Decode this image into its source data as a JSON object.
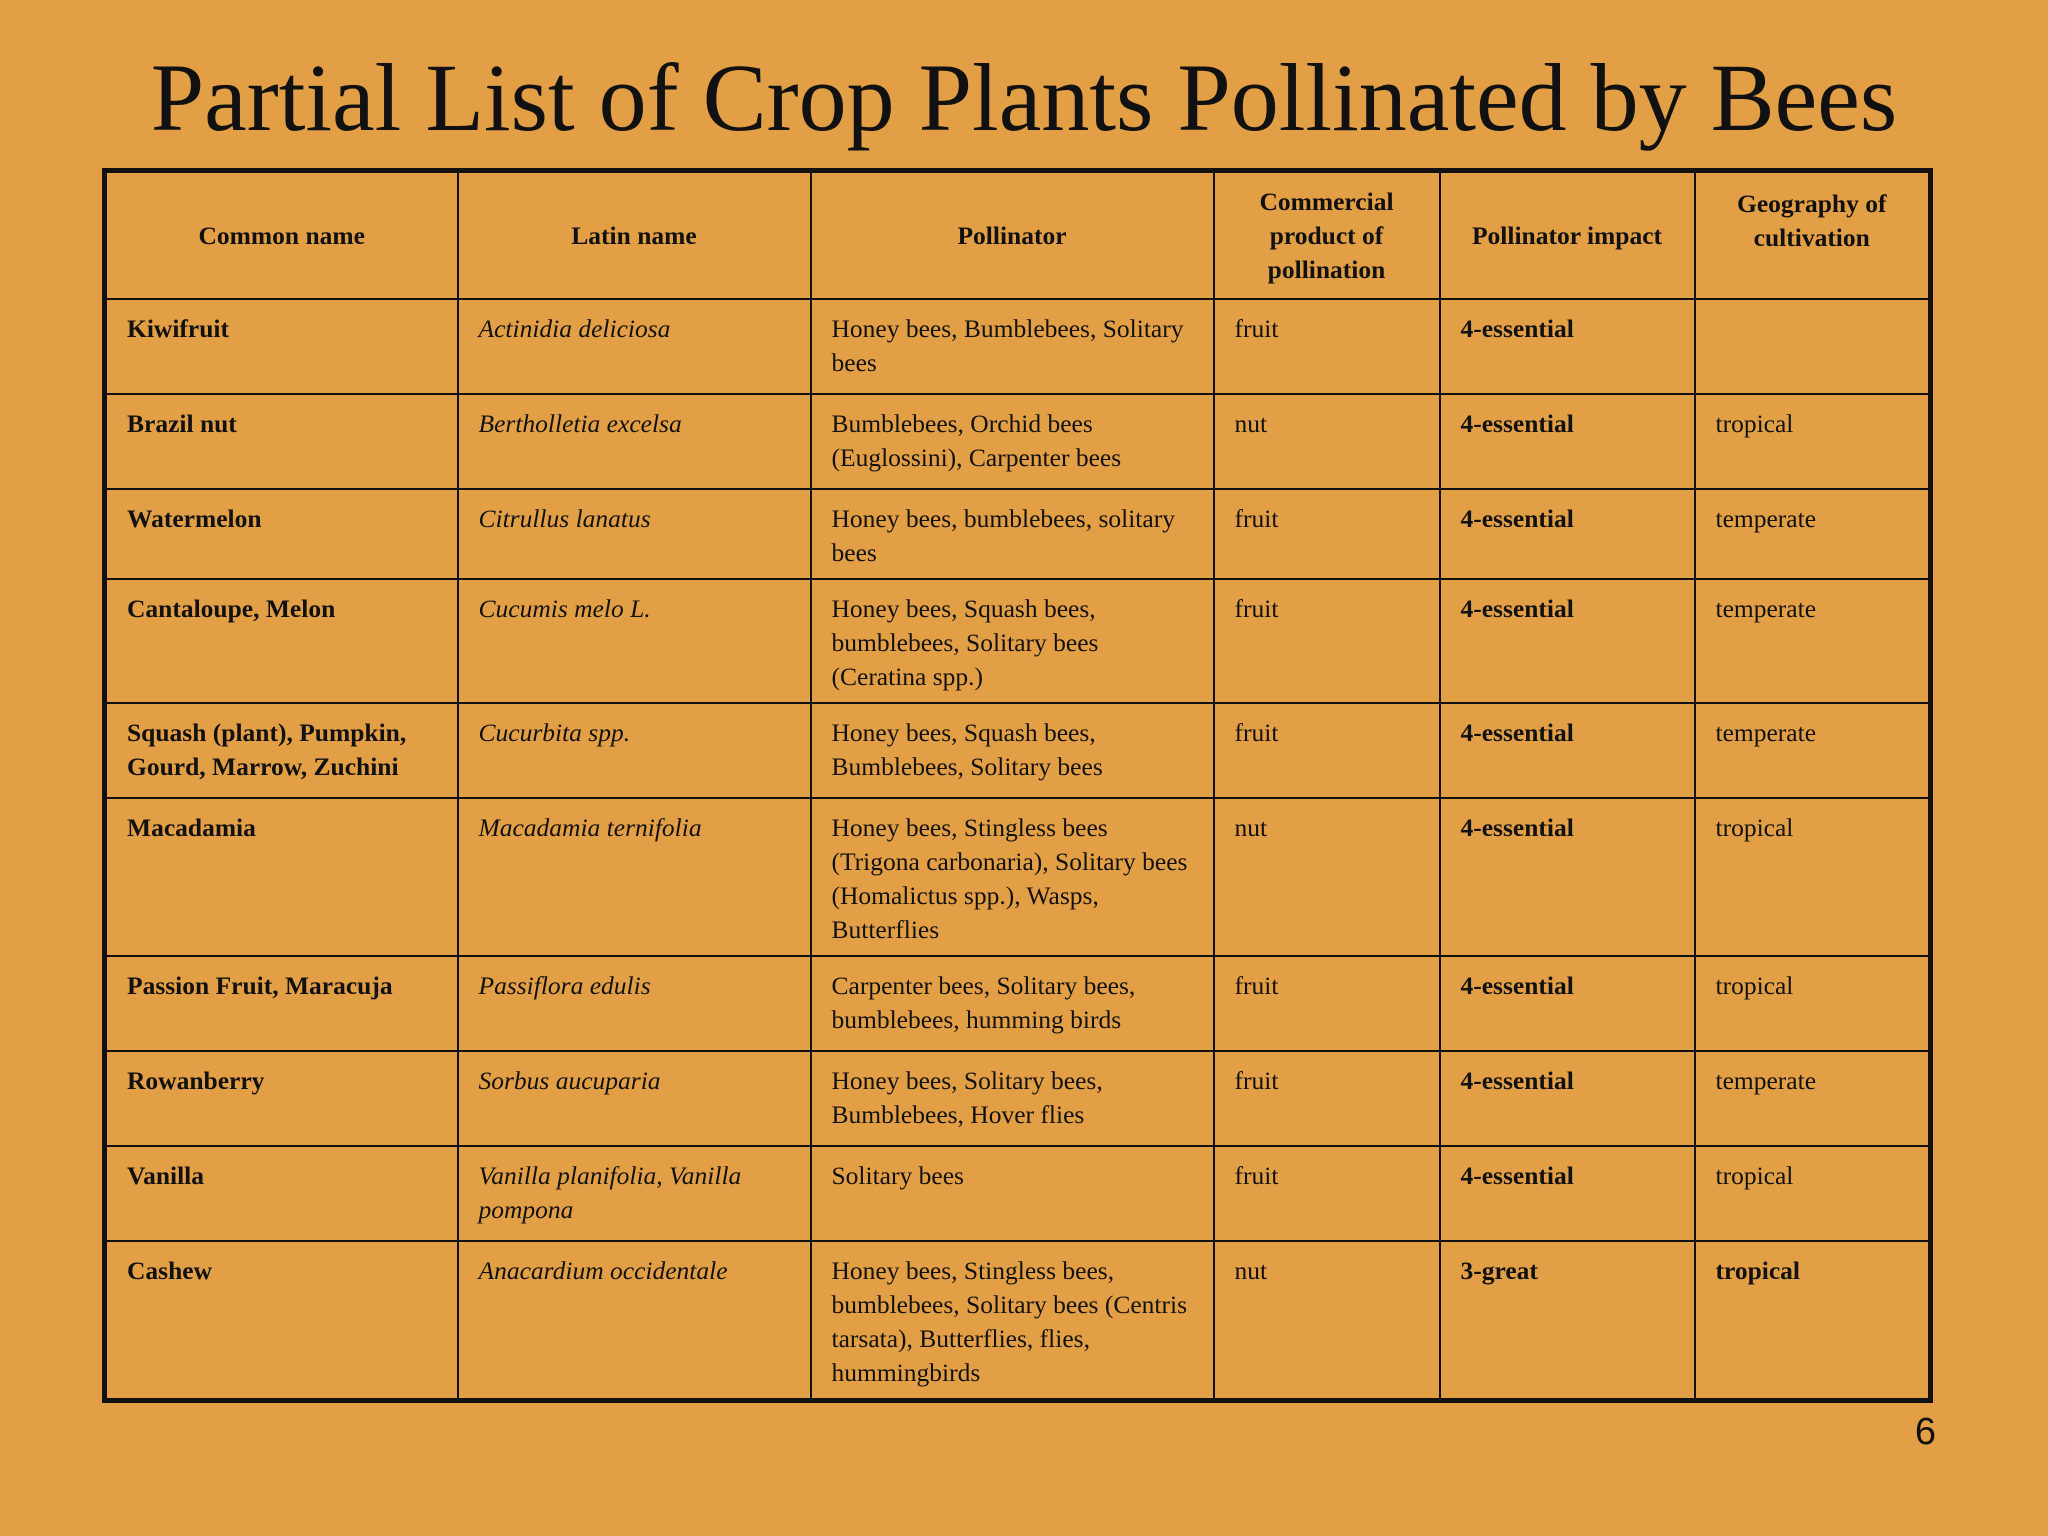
{
  "title": "Partial List of Crop Plants Pollinated by Bees",
  "page_number": "6",
  "headers": [
    "Common name",
    "Latin name",
    "Pollinator",
    "Commercial product of pollination",
    "Pollinator impact",
    "Geography of cultivation"
  ],
  "rows": [
    {
      "common": "Kiwifruit",
      "latin": "Actinidia deliciosa",
      "pollinator": "Honey bees, Bumblebees, Solitary bees",
      "product": "fruit",
      "impact": "4-essential",
      "geo": ""
    },
    {
      "common": "Brazil nut",
      "latin": "Bertholletia excelsa",
      "pollinator": "Bumblebees, Orchid bees (Euglossini), Carpenter bees",
      "product": "nut",
      "impact": "4-essential",
      "geo": "tropical"
    },
    {
      "common": "Watermelon",
      "latin": "Citrullus lanatus",
      "pollinator": "Honey bees, bumblebees, solitary bees",
      "product": "fruit",
      "impact": "4-essential",
      "geo": "temperate"
    },
    {
      "common": "Cantaloupe, Melon",
      "latin": "Cucumis melo L.",
      "pollinator": "Honey bees, Squash bees, bumblebees, Solitary bees (Ceratina spp.)",
      "product": "fruit",
      "impact": "4-essential",
      "geo": "temperate"
    },
    {
      "common": "Squash (plant), Pumpkin, Gourd, Marrow, Zuchini",
      "latin": "Cucurbita spp.",
      "pollinator": "Honey bees, Squash bees, Bumblebees, Solitary bees",
      "product": "fruit",
      "impact": "4-essential",
      "geo": "temperate"
    },
    {
      "common": "Macadamia",
      "latin": "Macadamia ternifolia",
      "pollinator": "Honey bees, Stingless bees (Trigona carbonaria), Solitary bees (Homalictus spp.), Wasps, Butterflies",
      "product": "nut",
      "impact": "4-essential",
      "geo": "tropical"
    },
    {
      "common": "Passion Fruit, Maracuja",
      "latin": "Passiflora edulis",
      "pollinator": "Carpenter bees, Solitary bees, bumblebees, humming birds",
      "product": "fruit",
      "impact": "4-essential",
      "geo": "tropical"
    },
    {
      "common": "Rowanberry",
      "latin": "Sorbus aucuparia",
      "pollinator": "Honey bees, Solitary bees, Bumblebees, Hover flies",
      "product": "fruit",
      "impact": "4-essential",
      "geo": "temperate"
    },
    {
      "common": "Vanilla",
      "latin": "Vanilla planifolia, Vanilla pompona",
      "pollinator": "Solitary bees",
      "product": "fruit",
      "impact": "4-essential",
      "geo": "tropical"
    },
    {
      "common": "Cashew",
      "latin": "Anacardium occidentale",
      "pollinator": "Honey bees, Stingless bees, bumblebees, Solitary bees (Centris tarsata), Butterflies, flies, hummingbirds",
      "product": "nut",
      "impact": "3-great",
      "geo": "tropical"
    }
  ]
}
